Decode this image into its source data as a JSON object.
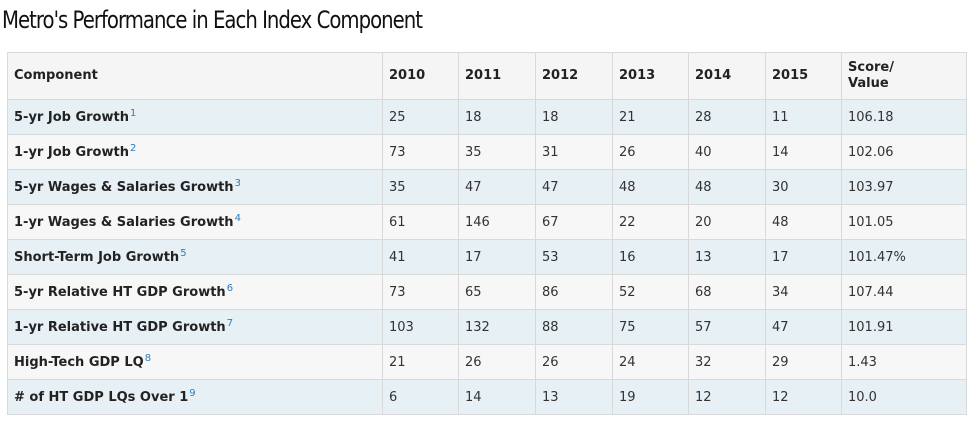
{
  "title": "Metro's Performance in Each Index Component",
  "table": {
    "headers": [
      "Component",
      "2010",
      "2011",
      "2012",
      "2013",
      "2014",
      "2015"
    ],
    "score_header_line1": "Score/",
    "score_header_line2": "Value",
    "rows": [
      {
        "component": "5-yr Job Growth",
        "footnote": "1",
        "values": [
          "25",
          "18",
          "18",
          "21",
          "28",
          "11"
        ],
        "score": "106.18"
      },
      {
        "component": "1-yr Job Growth",
        "footnote": "2",
        "values": [
          "73",
          "35",
          "31",
          "26",
          "40",
          "14"
        ],
        "score": "102.06"
      },
      {
        "component": "5-yr Wages & Salaries Growth",
        "footnote": "3",
        "values": [
          "35",
          "47",
          "47",
          "48",
          "48",
          "30"
        ],
        "score": "103.97"
      },
      {
        "component": "1-yr Wages & Salaries Growth",
        "footnote": "4",
        "values": [
          "61",
          "146",
          "67",
          "22",
          "20",
          "48"
        ],
        "score": "101.05"
      },
      {
        "component": "Short-Term Job Growth",
        "footnote": "5",
        "values": [
          "41",
          "17",
          "53",
          "16",
          "13",
          "17"
        ],
        "score": "101.47%"
      },
      {
        "component": "5-yr Relative HT GDP Growth",
        "footnote": "6",
        "values": [
          "73",
          "65",
          "86",
          "52",
          "68",
          "34"
        ],
        "score": "107.44"
      },
      {
        "component": "1-yr Relative HT GDP Growth",
        "footnote": "7",
        "values": [
          "103",
          "132",
          "88",
          "75",
          "57",
          "47"
        ],
        "score": "101.91"
      },
      {
        "component": "High-Tech GDP LQ",
        "footnote": "8",
        "values": [
          "21",
          "26",
          "26",
          "24",
          "32",
          "29"
        ],
        "score": "1.43"
      },
      {
        "component": "# of HT GDP LQs Over 1",
        "footnote": "9",
        "values": [
          "6",
          "14",
          "13",
          "19",
          "12",
          "12"
        ],
        "score": "10.0"
      }
    ]
  },
  "colors": {
    "row_odd": "#e7f0f5",
    "row_even": "#f7f7f7",
    "header_bg": "#f5f5f5",
    "footnote_link": "#2a7fc1"
  }
}
